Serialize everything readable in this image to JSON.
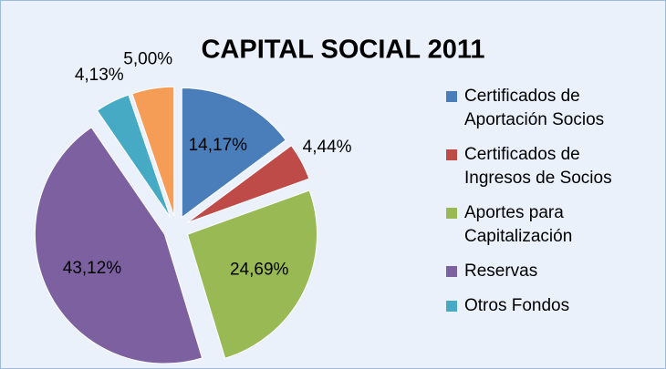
{
  "chart_data": {
    "type": "pie",
    "title": "CAPITAL SOCIAL 2011",
    "categories": [
      "Certificados de Aportación Socios",
      "Certificados de Ingresos de Socios",
      "Aportes para Capitalización",
      "Reservas",
      "Otros Fondos",
      null
    ],
    "values": [
      14.17,
      4.44,
      24.69,
      43.12,
      4.13,
      5.0
    ],
    "value_labels": [
      "14,17%",
      "4,44%",
      "24,69%",
      "43,12%",
      "4,13%",
      "5,00%"
    ],
    "colors": [
      "#4a7ebb",
      "#be4b48",
      "#98b954",
      "#7d60a0",
      "#46aac5",
      "#f59d56"
    ],
    "legend": "right"
  }
}
